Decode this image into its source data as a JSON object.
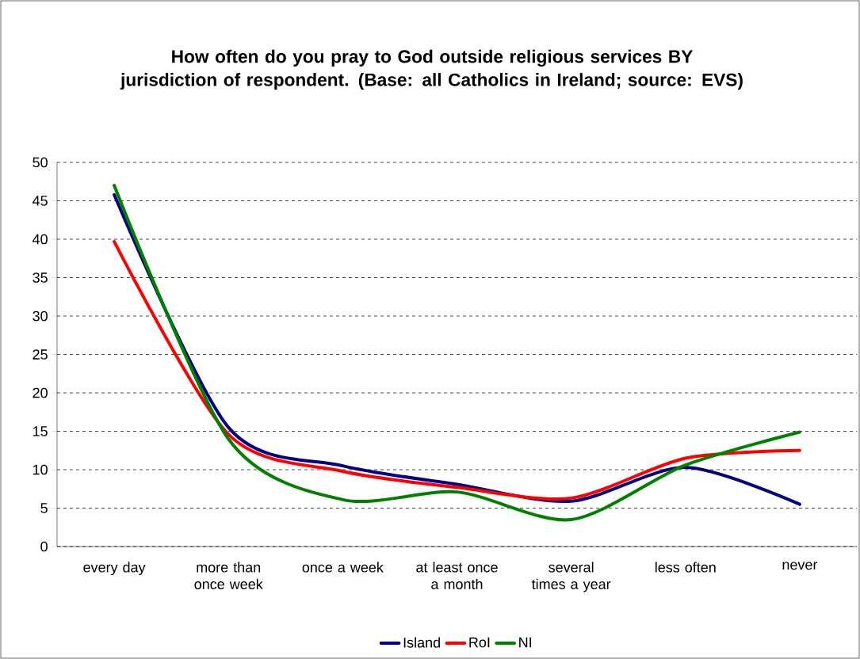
{
  "chart_data": {
    "type": "line",
    "title": "How often do you pray to God outside religious services BY jurisdiction of  respondent. (Base: all Catholics in Ireland; source: EVS)",
    "categories": [
      "every day",
      "more than once week",
      "once a week",
      "at least once a month",
      "several times a year",
      "less often",
      "never"
    ],
    "series": [
      {
        "name": "Island",
        "color": "#000080",
        "values": [
          45.8,
          15.5,
          10.5,
          8.1,
          5.9,
          10.3,
          5.5
        ]
      },
      {
        "name": "RoI",
        "color": "#ff0000",
        "values": [
          39.7,
          14.6,
          9.8,
          7.7,
          6.3,
          11.5,
          12.5
        ]
      },
      {
        "name": "NI",
        "color": "#008000",
        "values": [
          47,
          14,
          6.1,
          7.1,
          3.5,
          10.6,
          14.9
        ]
      }
    ],
    "ylim": [
      0,
      50
    ],
    "yticks": [
      0,
      5,
      10,
      15,
      20,
      25,
      30,
      35,
      40,
      45,
      50
    ],
    "grid": "y",
    "legend": "bottom"
  }
}
